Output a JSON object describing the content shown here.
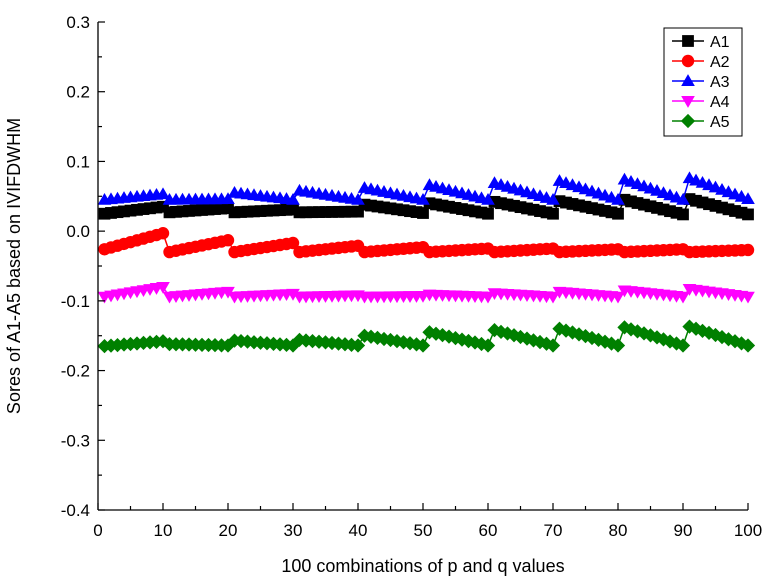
{
  "chart_data": {
    "type": "line",
    "title": "",
    "xlabel": "100 combinations of  p and q values",
    "ylabel": "Sores of A1-A5 based on IVIFDWHM",
    "xlim": [
      0,
      100
    ],
    "ylim": [
      -0.4,
      0.3
    ],
    "xticks": [
      "0",
      "10",
      "20",
      "30",
      "40",
      "50",
      "60",
      "70",
      "80",
      "90",
      "100"
    ],
    "yticks": [
      "-0.4",
      "-0.3",
      "-0.2",
      "-0.1",
      "0.0",
      "0.1",
      "0.2",
      "0.3"
    ],
    "legend_position": "top-right",
    "grid": false,
    "series": [
      {
        "name": "A1",
        "color": "#000000",
        "marker": "square",
        "points": [
          {
            "x": 1,
            "y": 0.025
          },
          {
            "x": 10,
            "y": 0.035
          },
          {
            "x": 11,
            "y": 0.027
          },
          {
            "x": 20,
            "y": 0.033
          },
          {
            "x": 21,
            "y": 0.027
          },
          {
            "x": 30,
            "y": 0.031
          },
          {
            "x": 31,
            "y": 0.027
          },
          {
            "x": 40,
            "y": 0.028
          },
          {
            "x": 41,
            "y": 0.038
          },
          {
            "x": 50,
            "y": 0.026
          },
          {
            "x": 51,
            "y": 0.04
          },
          {
            "x": 60,
            "y": 0.025
          },
          {
            "x": 61,
            "y": 0.042
          },
          {
            "x": 70,
            "y": 0.025
          },
          {
            "x": 71,
            "y": 0.043
          },
          {
            "x": 80,
            "y": 0.025
          },
          {
            "x": 81,
            "y": 0.045
          },
          {
            "x": 90,
            "y": 0.024
          },
          {
            "x": 91,
            "y": 0.046
          },
          {
            "x": 100,
            "y": 0.024
          }
        ]
      },
      {
        "name": "A2",
        "color": "#ff0000",
        "marker": "circle",
        "points": [
          {
            "x": 1,
            "y": -0.026
          },
          {
            "x": 10,
            "y": -0.003
          },
          {
            "x": 11,
            "y": -0.03
          },
          {
            "x": 20,
            "y": -0.013
          },
          {
            "x": 21,
            "y": -0.03
          },
          {
            "x": 30,
            "y": -0.017
          },
          {
            "x": 31,
            "y": -0.03
          },
          {
            "x": 40,
            "y": -0.021
          },
          {
            "x": 41,
            "y": -0.03
          },
          {
            "x": 50,
            "y": -0.023
          },
          {
            "x": 51,
            "y": -0.03
          },
          {
            "x": 60,
            "y": -0.025
          },
          {
            "x": 61,
            "y": -0.03
          },
          {
            "x": 70,
            "y": -0.025
          },
          {
            "x": 71,
            "y": -0.03
          },
          {
            "x": 80,
            "y": -0.026
          },
          {
            "x": 81,
            "y": -0.03
          },
          {
            "x": 90,
            "y": -0.026
          },
          {
            "x": 91,
            "y": -0.03
          },
          {
            "x": 100,
            "y": -0.027
          }
        ]
      },
      {
        "name": "A3",
        "color": "#0000ff",
        "marker": "triangle-up",
        "points": [
          {
            "x": 1,
            "y": 0.045
          },
          {
            "x": 10,
            "y": 0.053
          },
          {
            "x": 11,
            "y": 0.045
          },
          {
            "x": 20,
            "y": 0.046
          },
          {
            "x": 21,
            "y": 0.055
          },
          {
            "x": 30,
            "y": 0.045
          },
          {
            "x": 31,
            "y": 0.058
          },
          {
            "x": 40,
            "y": 0.045
          },
          {
            "x": 41,
            "y": 0.062
          },
          {
            "x": 50,
            "y": 0.045
          },
          {
            "x": 51,
            "y": 0.066
          },
          {
            "x": 60,
            "y": 0.045
          },
          {
            "x": 61,
            "y": 0.069
          },
          {
            "x": 70,
            "y": 0.045
          },
          {
            "x": 71,
            "y": 0.072
          },
          {
            "x": 80,
            "y": 0.045
          },
          {
            "x": 81,
            "y": 0.074
          },
          {
            "x": 90,
            "y": 0.045
          },
          {
            "x": 91,
            "y": 0.076
          },
          {
            "x": 100,
            "y": 0.046
          }
        ]
      },
      {
        "name": "A4",
        "color": "#ff00ff",
        "marker": "triangle-down",
        "points": [
          {
            "x": 1,
            "y": -0.094
          },
          {
            "x": 10,
            "y": -0.08
          },
          {
            "x": 11,
            "y": -0.094
          },
          {
            "x": 20,
            "y": -0.087
          },
          {
            "x": 21,
            "y": -0.094
          },
          {
            "x": 30,
            "y": -0.09
          },
          {
            "x": 31,
            "y": -0.094
          },
          {
            "x": 40,
            "y": -0.092
          },
          {
            "x": 41,
            "y": -0.094
          },
          {
            "x": 50,
            "y": -0.093
          },
          {
            "x": 51,
            "y": -0.091
          },
          {
            "x": 60,
            "y": -0.094
          },
          {
            "x": 61,
            "y": -0.089
          },
          {
            "x": 70,
            "y": -0.094
          },
          {
            "x": 71,
            "y": -0.087
          },
          {
            "x": 80,
            "y": -0.094
          },
          {
            "x": 81,
            "y": -0.085
          },
          {
            "x": 90,
            "y": -0.094
          },
          {
            "x": 91,
            "y": -0.083
          },
          {
            "x": 100,
            "y": -0.094
          }
        ]
      },
      {
        "name": "A5",
        "color": "#008000",
        "marker": "diamond",
        "points": [
          {
            "x": 1,
            "y": -0.165
          },
          {
            "x": 10,
            "y": -0.158
          },
          {
            "x": 11,
            "y": -0.162
          },
          {
            "x": 20,
            "y": -0.164
          },
          {
            "x": 21,
            "y": -0.157
          },
          {
            "x": 30,
            "y": -0.164
          },
          {
            "x": 31,
            "y": -0.156
          },
          {
            "x": 40,
            "y": -0.164
          },
          {
            "x": 41,
            "y": -0.15
          },
          {
            "x": 50,
            "y": -0.164
          },
          {
            "x": 51,
            "y": -0.145
          },
          {
            "x": 60,
            "y": -0.164
          },
          {
            "x": 61,
            "y": -0.142
          },
          {
            "x": 70,
            "y": -0.164
          },
          {
            "x": 71,
            "y": -0.14
          },
          {
            "x": 80,
            "y": -0.164
          },
          {
            "x": 81,
            "y": -0.138
          },
          {
            "x": 90,
            "y": -0.164
          },
          {
            "x": 91,
            "y": -0.137
          },
          {
            "x": 100,
            "y": -0.164
          }
        ]
      }
    ]
  }
}
